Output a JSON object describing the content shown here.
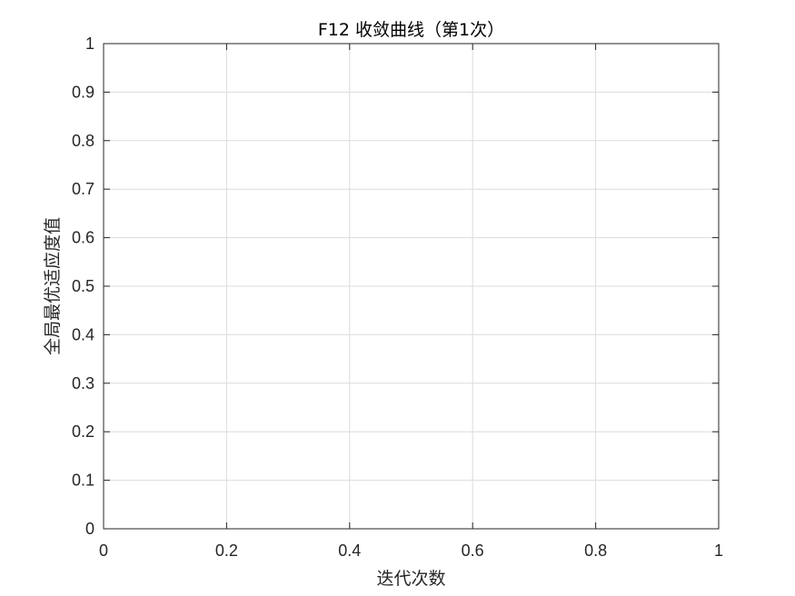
{
  "chart_data": {
    "type": "line",
    "title": "F12 收敛曲线（第1次）",
    "xlabel": "迭代次数",
    "ylabel": "全局最优适应度值",
    "xlim": [
      0,
      1
    ],
    "ylim": [
      0,
      1
    ],
    "x_ticks": [
      0,
      0.2,
      0.4,
      0.6,
      0.8,
      1
    ],
    "x_tick_labels": [
      "0",
      "0.2",
      "0.4",
      "0.6",
      "0.8",
      "1"
    ],
    "y_ticks": [
      0,
      0.1,
      0.2,
      0.3,
      0.4,
      0.5,
      0.6,
      0.7,
      0.8,
      0.9,
      1
    ],
    "y_tick_labels": [
      "0",
      "0.1",
      "0.2",
      "0.3",
      "0.4",
      "0.5",
      "0.6",
      "0.7",
      "0.8",
      "0.9",
      "1"
    ],
    "grid": true,
    "series": [],
    "colors": {
      "axes": "#262626",
      "grid": "#dcdcdc",
      "background": "#ffffff"
    }
  }
}
